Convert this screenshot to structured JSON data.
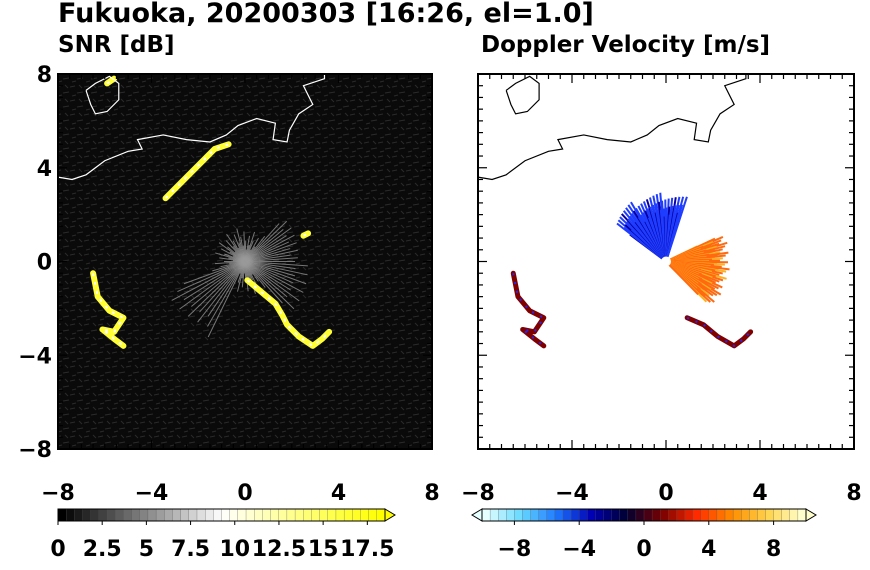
{
  "figure": {
    "title": "Fukuoka, 20200303 [16:26, el=1.0]"
  },
  "chart_data": [
    {
      "type": "heatmap",
      "title": "SNR [dB]",
      "xlim": [
        -8,
        8
      ],
      "ylim": [
        -8,
        8
      ],
      "x_ticks": [
        -8,
        -4,
        0,
        4,
        8
      ],
      "y_ticks": [
        -8,
        -4,
        0,
        4,
        8
      ],
      "x_tick_labels": [
        "−8",
        "−4",
        "0",
        "4",
        "8"
      ],
      "y_tick_labels": [
        "−8",
        "−4",
        "0",
        "4",
        "8"
      ],
      "colorbar": {
        "range": [
          0,
          18.5
        ],
        "ticks": [
          0,
          2.5,
          5,
          7.5,
          10,
          12.5,
          15,
          17.5
        ],
        "tick_labels": [
          "0",
          "2.5",
          "5",
          "7.5",
          "10",
          "12.5",
          "15",
          "17.5"
        ],
        "colors": [
          "#000000",
          "#ffffff",
          "#ffff00"
        ],
        "extend": "max"
      },
      "background_color": "#0a0a0a",
      "echoes": [
        {
          "name": "southwest-band",
          "points": [
            [
              -6.5,
              -0.5
            ],
            [
              -6.3,
              -1.5
            ],
            [
              -5.8,
              -2.1
            ],
            [
              -5.2,
              -2.4
            ],
            [
              -5.6,
              -3.0
            ],
            [
              -6.1,
              -2.9
            ],
            [
              -5.6,
              -3.3
            ],
            [
              -5.2,
              -3.6
            ]
          ]
        },
        {
          "name": "southeast-band",
          "points": [
            [
              0.1,
              -0.8
            ],
            [
              0.7,
              -1.3
            ],
            [
              1.3,
              -1.8
            ],
            [
              1.6,
              -2.3
            ],
            [
              1.8,
              -2.7
            ],
            [
              2.3,
              -3.2
            ],
            [
              2.9,
              -3.6
            ],
            [
              3.3,
              -3.3
            ],
            [
              3.6,
              -3.0
            ]
          ]
        },
        {
          "name": "small-echo-ne",
          "points": [
            [
              2.5,
              1.1
            ],
            [
              2.7,
              1.2
            ]
          ]
        },
        {
          "name": "small-echo-n",
          "points": [
            [
              -3.4,
              2.7
            ],
            [
              -1.3,
              4.8
            ],
            [
              -0.7,
              5.0
            ]
          ]
        },
        {
          "name": "small-echo-top",
          "points": [
            [
              -5.9,
              7.6
            ],
            [
              -5.6,
              7.8
            ]
          ]
        }
      ]
    },
    {
      "type": "heatmap",
      "title": "Doppler Velocity [m/s]",
      "xlim": [
        -8,
        8
      ],
      "ylim": [
        -8,
        8
      ],
      "x_ticks": [
        -8,
        -4,
        0,
        4,
        8
      ],
      "y_ticks": [
        -8,
        -4,
        0,
        4,
        8
      ],
      "x_tick_labels": [
        "−8",
        "−4",
        "0",
        "4",
        "8"
      ],
      "y_tick_labels": [
        "−8",
        "−4",
        "0",
        "4",
        "8"
      ],
      "colorbar": {
        "range": [
          -10,
          10
        ],
        "ticks": [
          -8,
          -4,
          0,
          4,
          8
        ],
        "tick_labels": [
          "−8",
          "−4",
          "0",
          "4",
          "8"
        ],
        "colors": [
          "#e6ffff",
          "#66d9ff",
          "#1e78ff",
          "#0000b4",
          "#000033",
          "#780000",
          "#ff2a00",
          "#ff8c00",
          "#ffd24a",
          "#ffffcc"
        ],
        "extend": "both"
      },
      "background_color": "#ffffff",
      "echoes": [
        {
          "name": "southwest-band",
          "points": [
            [
              -6.5,
              -0.5
            ],
            [
              -6.3,
              -1.5
            ],
            [
              -5.8,
              -2.1
            ],
            [
              -5.2,
              -2.4
            ],
            [
              -5.6,
              -3.0
            ],
            [
              -6.1,
              -2.9
            ],
            [
              -5.6,
              -3.3
            ],
            [
              -5.2,
              -3.6
            ]
          ]
        },
        {
          "name": "southeast-band",
          "points": [
            [
              0.9,
              -2.4
            ],
            [
              1.6,
              -2.7
            ],
            [
              2.2,
              -3.2
            ],
            [
              2.9,
              -3.6
            ],
            [
              3.3,
              -3.3
            ],
            [
              3.6,
              -3.0
            ]
          ]
        }
      ]
    }
  ],
  "coastline": [
    [
      [
        -8,
        3.6
      ],
      [
        -7.4,
        3.5
      ],
      [
        -6.8,
        3.7
      ],
      [
        -6,
        4.3
      ],
      [
        -5,
        4.7
      ],
      [
        -4.4,
        4.8
      ],
      [
        -4.6,
        5.2
      ],
      [
        -3.5,
        5.4
      ],
      [
        -2.5,
        5.2
      ],
      [
        -1.5,
        5.1
      ],
      [
        -0.8,
        5.4
      ],
      [
        -0.3,
        5.8
      ],
      [
        0.5,
        6.1
      ],
      [
        1.3,
        5.9
      ],
      [
        1.2,
        5.2
      ],
      [
        1.8,
        5.1
      ],
      [
        1.9,
        5.6
      ],
      [
        2.3,
        6.3
      ],
      [
        2.9,
        6.7
      ],
      [
        2.5,
        7.5
      ],
      [
        3.4,
        7.8
      ],
      [
        3.4,
        8
      ]
    ],
    [
      [
        -6.8,
        7.3
      ],
      [
        -6.4,
        7.6
      ],
      [
        -5.8,
        7.9
      ],
      [
        -5.4,
        7.6
      ],
      [
        -5.4,
        6.9
      ],
      [
        -5.9,
        6.4
      ],
      [
        -6.4,
        6.3
      ],
      [
        -6.6,
        6.7
      ],
      [
        -6.8,
        7.3
      ]
    ]
  ]
}
